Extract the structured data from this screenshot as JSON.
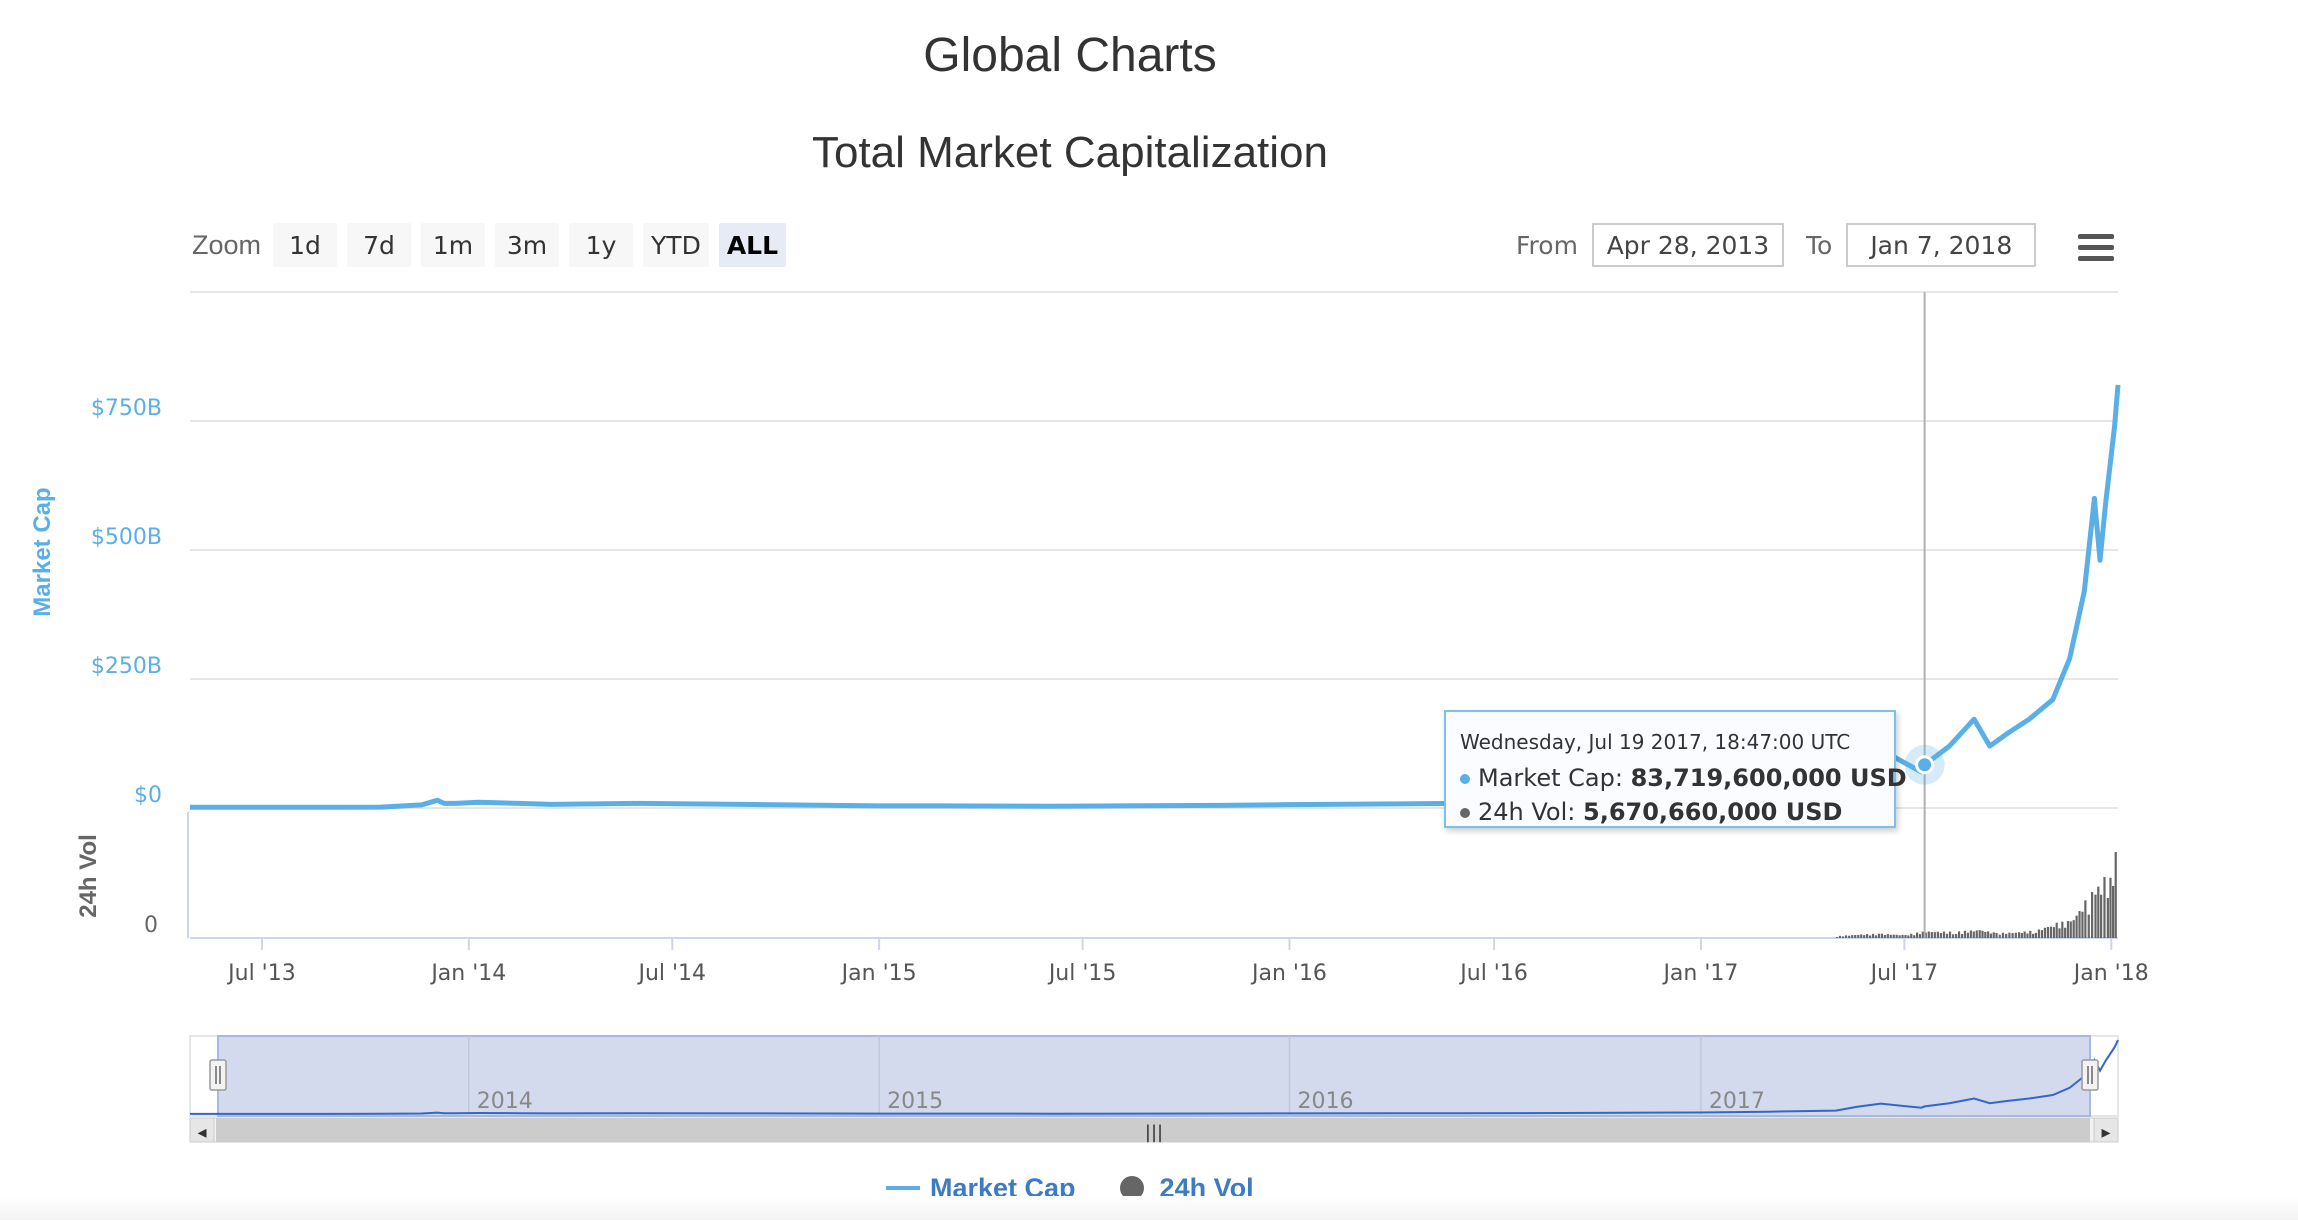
{
  "page": {
    "title": "Global Charts"
  },
  "chart_data": {
    "type": "line",
    "title": "Total Market Capitalization",
    "x_start": "2013-04-28",
    "x_end": "2018-01-07",
    "series": [
      {
        "name": "Market Cap",
        "axis": "Market Cap",
        "color": "#5aafe6",
        "unit": "USD",
        "points": [
          [
            "2013-04-28",
            1.6
          ],
          [
            "2013-07-01",
            1.3
          ],
          [
            "2013-09-01",
            1.4
          ],
          [
            "2013-10-15",
            1.8
          ],
          [
            "2013-11-20",
            6
          ],
          [
            "2013-12-04",
            15
          ],
          [
            "2013-12-10",
            9
          ],
          [
            "2013-12-20",
            9
          ],
          [
            "2014-01-10",
            11
          ],
          [
            "2014-02-15",
            9
          ],
          [
            "2014-03-15",
            7
          ],
          [
            "2014-06-01",
            9
          ],
          [
            "2014-09-01",
            7
          ],
          [
            "2014-12-31",
            4
          ],
          [
            "2015-03-01",
            4
          ],
          [
            "2015-06-01",
            3.5
          ],
          [
            "2015-11-01",
            5
          ],
          [
            "2016-01-01",
            6.5
          ],
          [
            "2016-06-01",
            9
          ],
          [
            "2016-09-01",
            11
          ],
          [
            "2016-12-31",
            17
          ],
          [
            "2017-03-01",
            25
          ],
          [
            "2017-05-01",
            38
          ],
          [
            "2017-05-20",
            80
          ],
          [
            "2017-06-10",
            115
          ],
          [
            "2017-06-25",
            95
          ],
          [
            "2017-07-16",
            70
          ],
          [
            "2017-07-19",
            83.7196
          ],
          [
            "2017-08-10",
            120
          ],
          [
            "2017-09-01",
            172
          ],
          [
            "2017-09-15",
            120
          ],
          [
            "2017-10-01",
            145
          ],
          [
            "2017-10-20",
            172
          ],
          [
            "2017-11-10",
            210
          ],
          [
            "2017-11-25",
            290
          ],
          [
            "2017-12-08",
            420
          ],
          [
            "2017-12-17",
            600
          ],
          [
            "2017-12-22",
            480
          ],
          [
            "2017-12-27",
            590
          ],
          [
            "2018-01-04",
            740
          ],
          [
            "2018-01-07",
            820
          ]
        ]
      },
      {
        "name": "24h Vol",
        "axis": "24h Vol",
        "color": "#666666",
        "unit": "USD",
        "note_tooltip_value": 5670660000,
        "points": [
          [
            "2017-05-01",
            1.5
          ],
          [
            "2017-05-20",
            3
          ],
          [
            "2017-06-10",
            3.5
          ],
          [
            "2017-07-01",
            2.5
          ],
          [
            "2017-07-19",
            5.67066
          ],
          [
            "2017-08-15",
            5
          ],
          [
            "2017-09-05",
            7
          ],
          [
            "2017-09-20",
            4
          ],
          [
            "2017-10-10",
            5
          ],
          [
            "2017-10-25",
            6
          ],
          [
            "2017-11-10",
            12
          ],
          [
            "2017-11-25",
            14
          ],
          [
            "2017-12-08",
            30
          ],
          [
            "2017-12-17",
            40
          ],
          [
            "2017-12-22",
            58
          ],
          [
            "2017-12-28",
            40
          ],
          [
            "2018-01-04",
            70
          ],
          [
            "2018-01-07",
            85
          ]
        ]
      }
    ],
    "y_axis_market_cap": {
      "title": "Market Cap",
      "range": [
        0,
        1000
      ],
      "ticks": [
        {
          "value": 0,
          "label": "$0"
        },
        {
          "value": 250,
          "label": "$250B"
        },
        {
          "value": 500,
          "label": "$500B"
        },
        {
          "value": 750,
          "label": "$750B"
        }
      ]
    },
    "y_axis_volume": {
      "title": "24h Vol",
      "range": [
        0,
        100
      ],
      "ticks": [
        {
          "value": 0,
          "label": "0"
        }
      ]
    },
    "x_ticks": [
      {
        "date": "2013-07-01",
        "label": "Jul '13"
      },
      {
        "date": "2014-01-01",
        "label": "Jan '14"
      },
      {
        "date": "2014-07-01",
        "label": "Jul '14"
      },
      {
        "date": "2015-01-01",
        "label": "Jan '15"
      },
      {
        "date": "2015-07-01",
        "label": "Jul '15"
      },
      {
        "date": "2016-01-01",
        "label": "Jan '16"
      },
      {
        "date": "2016-07-01",
        "label": "Jul '16"
      },
      {
        "date": "2017-01-01",
        "label": "Jan '17"
      },
      {
        "date": "2017-07-01",
        "label": "Jul '17"
      },
      {
        "date": "2018-01-01",
        "label": "Jan '18"
      }
    ],
    "navigator_ticks": [
      {
        "date": "2014-01-01",
        "label": "2014"
      },
      {
        "date": "2015-01-01",
        "label": "2015"
      },
      {
        "date": "2016-01-01",
        "label": "2016"
      },
      {
        "date": "2017-01-01",
        "label": "2017"
      }
    ],
    "crosshair_date": "2017-07-19",
    "grid": true,
    "legend_position": "bottom-center"
  },
  "zoom": {
    "label": "Zoom",
    "buttons": [
      "1d",
      "7d",
      "1m",
      "3m",
      "1y",
      "YTD",
      "ALL"
    ],
    "active": "ALL"
  },
  "range": {
    "from_label": "From",
    "from_value": "Apr 28, 2013",
    "to_label": "To",
    "to_value": "Jan 7, 2018"
  },
  "tooltip": {
    "date": "Wednesday, Jul 19 2017, 18:47:00 UTC",
    "market_cap_label": "Market Cap:",
    "market_cap_value": "83,719,600,000 USD",
    "volume_label": "24h Vol:",
    "volume_value": "5,670,660,000 USD"
  },
  "navigator": {
    "handle_glyph": "|||",
    "scroll_left_glyph": "◂",
    "scroll_right_glyph": "▸"
  },
  "legend": {
    "items": [
      "Market Cap",
      "24h Vol"
    ]
  },
  "icons": {
    "menu": "hamburger-menu-icon"
  }
}
